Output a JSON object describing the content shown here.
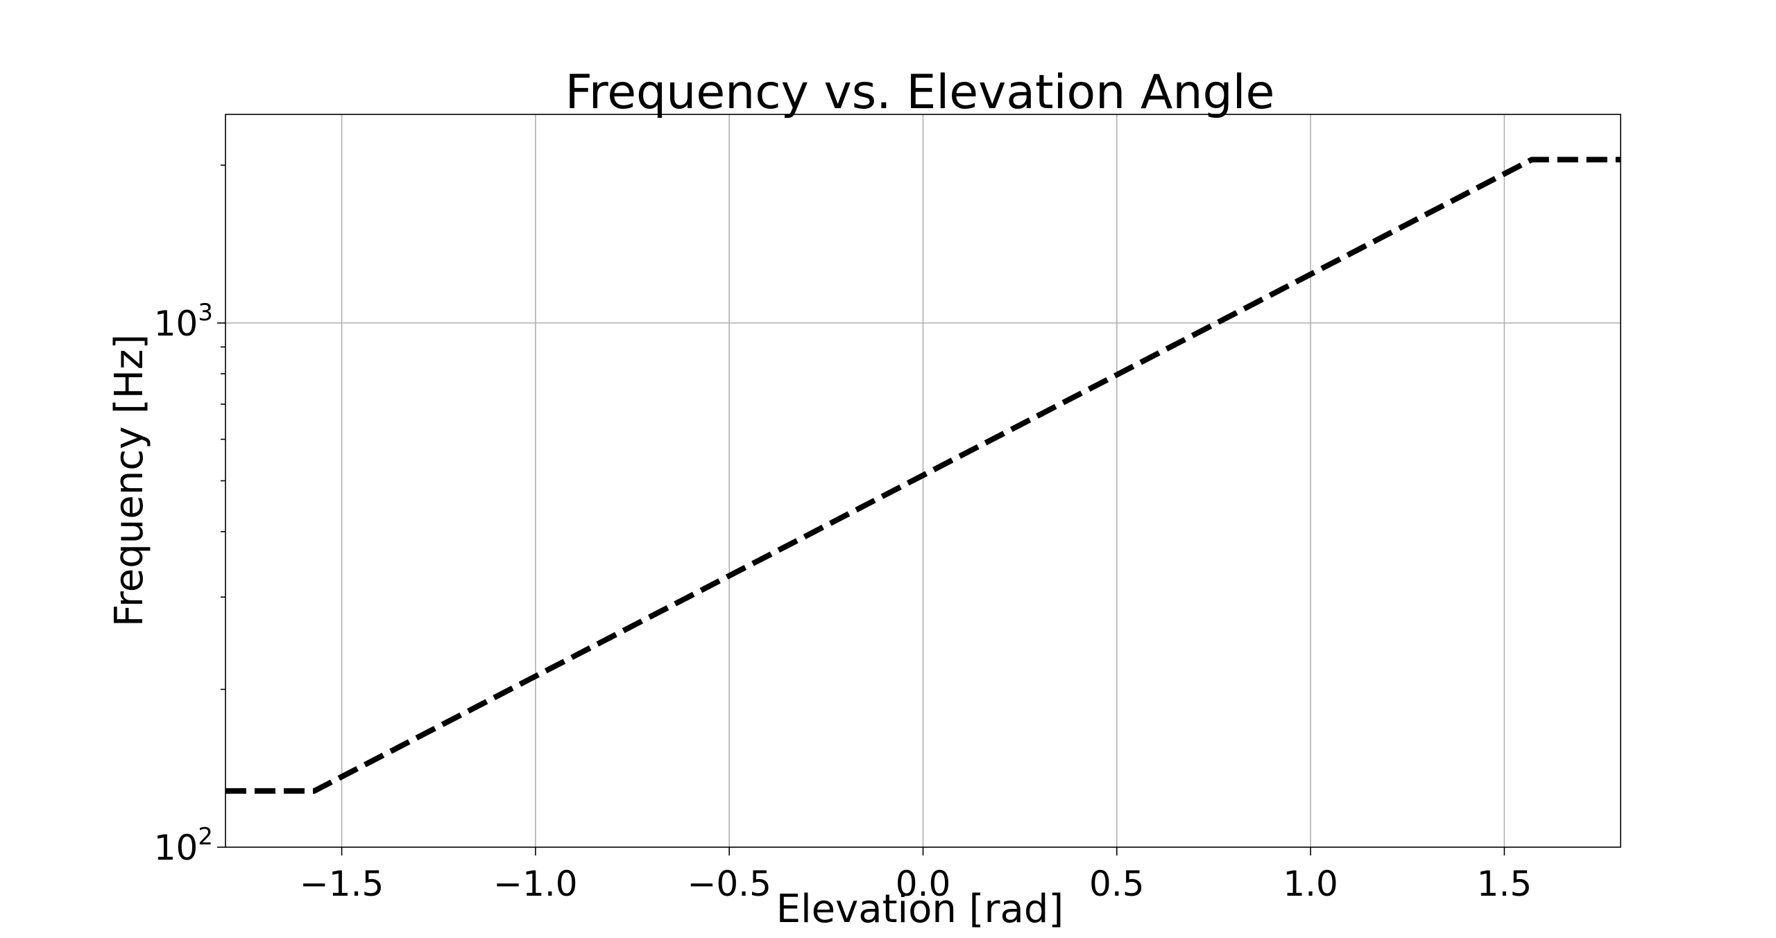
{
  "chart_data": {
    "type": "line",
    "title": "Frequency vs. Elevation Angle",
    "xlabel": "Elevation [rad]",
    "ylabel": "Frequency [Hz]",
    "xlim": [
      -1.8,
      1.8
    ],
    "ylim": [
      100,
      2500
    ],
    "yscale": "log",
    "grid": true,
    "x_ticks": [
      {
        "value": -1.5,
        "label": "−1.5"
      },
      {
        "value": -1.0,
        "label": "−1.0"
      },
      {
        "value": -0.5,
        "label": "−0.5"
      },
      {
        "value": 0.0,
        "label": "0.0"
      },
      {
        "value": 0.5,
        "label": "0.5"
      },
      {
        "value": 1.0,
        "label": "1.0"
      },
      {
        "value": 1.5,
        "label": "1.5"
      }
    ],
    "y_ticks": [
      {
        "value": 100,
        "base": "10",
        "exponent": "2"
      },
      {
        "value": 1000,
        "base": "10",
        "exponent": "3"
      }
    ],
    "series": [
      {
        "color": "#000000",
        "line_style": "dashed",
        "x": [
          -1.8,
          -1.5708,
          1.5708,
          1.8
        ],
        "y": [
          128,
          128,
          2050,
          2050
        ]
      }
    ]
  }
}
